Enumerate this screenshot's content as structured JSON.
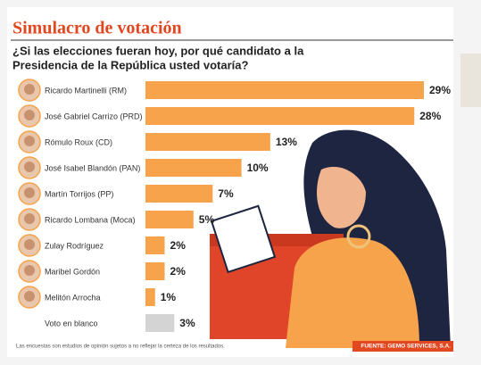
{
  "chart_data": {
    "type": "bar",
    "orientation": "horizontal",
    "title": "Simulacro de votación",
    "subtitle": [
      "¿Si las elecciones fueran hoy, por qué candidato a la",
      "Presidencia de la República usted votaría?"
    ],
    "categories": [
      "Ricardo Martinelli (RM)",
      "José Gabriel Carrizo (PRD)",
      "Rómulo Roux (CD)",
      "José Isabel Blandón (PAN)",
      "Martín Torrijos (PP)",
      "Ricardo Lombana (Moca)",
      "Zulay Rodríguez",
      "Maribel Gordón",
      "Melitón Arrocha",
      "Voto en blanco"
    ],
    "values": [
      29,
      28,
      13,
      10,
      7,
      5,
      2,
      2,
      1,
      3
    ],
    "value_labels": [
      "29%",
      "28%",
      "13%",
      "10%",
      "7%",
      "5%",
      "2%",
      "2%",
      "1%",
      "3%"
    ],
    "colors": [
      "#f7a34b",
      "#f7a34b",
      "#f7a34b",
      "#f7a34b",
      "#f7a34b",
      "#f7a34b",
      "#f7a34b",
      "#f7a34b",
      "#f7a34b",
      "#d4d4d4"
    ],
    "note": "Las encuestas son estudios de opinión sujetos a no reflejar la certeza de los resultados.",
    "source": "FUENTE: GEMO SERVICES, S.A."
  }
}
